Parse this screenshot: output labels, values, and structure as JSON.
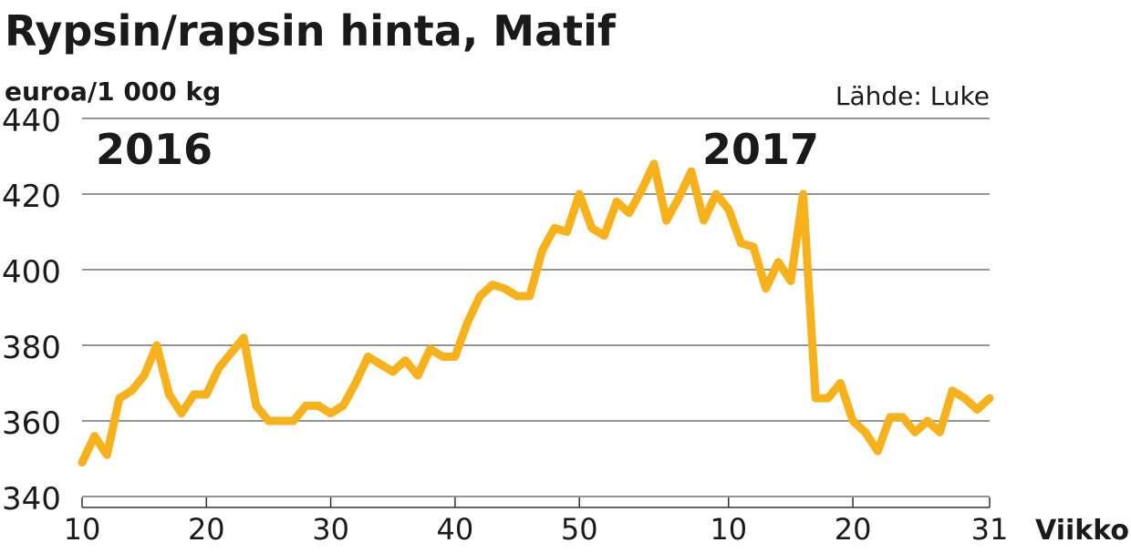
{
  "chart_data": {
    "type": "line",
    "title": "Rypsin/rapsin hinta, Matif",
    "subtitle": "euroa/1 000 kg",
    "source": "Lähde: Luke",
    "xlabel": "Viikko",
    "annotations": [
      "2016",
      "2017"
    ],
    "x": [
      0,
      1,
      2,
      3,
      4,
      5,
      6,
      7,
      8,
      9,
      10,
      11,
      12,
      13,
      14,
      15,
      16,
      17,
      18,
      19,
      20,
      21,
      22,
      23,
      24,
      25,
      26,
      27,
      28,
      29,
      30,
      31,
      32,
      33,
      34,
      35,
      36,
      37,
      38,
      39,
      40,
      41,
      42,
      43,
      44,
      45,
      46,
      47,
      48,
      49,
      50,
      51,
      52,
      53,
      54,
      55,
      56,
      57,
      58,
      59,
      60,
      61,
      62,
      63,
      64,
      65,
      66,
      67,
      68,
      69,
      70,
      71,
      72,
      73
    ],
    "values": [
      349,
      356,
      351,
      366,
      368,
      372,
      380,
      367,
      362,
      367,
      367,
      374,
      378,
      382,
      364,
      360,
      360,
      360,
      364,
      364,
      362,
      364,
      370,
      377,
      375,
      373,
      376,
      372,
      379,
      377,
      377,
      386,
      393,
      396,
      395,
      393,
      393,
      405,
      411,
      410,
      420,
      411,
      409,
      418,
      415,
      421,
      428,
      413,
      419,
      426,
      413,
      420,
      416,
      407,
      406,
      395,
      402,
      397,
      420,
      366,
      366,
      370,
      360,
      357,
      352,
      361,
      361,
      357,
      360,
      357,
      368,
      366,
      363,
      366
    ],
    "color": "#f7b21b",
    "xlim": [
      0,
      73
    ],
    "xticks": [
      {
        "value": 0,
        "label": "10"
      },
      {
        "value": 10,
        "label": "20"
      },
      {
        "value": 20,
        "label": "30"
      },
      {
        "value": 30,
        "label": "40"
      },
      {
        "value": 40,
        "label": "50"
      },
      {
        "value": 52,
        "label": "10"
      },
      {
        "value": 62,
        "label": "20"
      },
      {
        "value": 73,
        "label": "31"
      }
    ],
    "ylim": [
      340,
      440
    ],
    "yticks": [
      340,
      360,
      380,
      400,
      420,
      440
    ],
    "grid": true
  }
}
